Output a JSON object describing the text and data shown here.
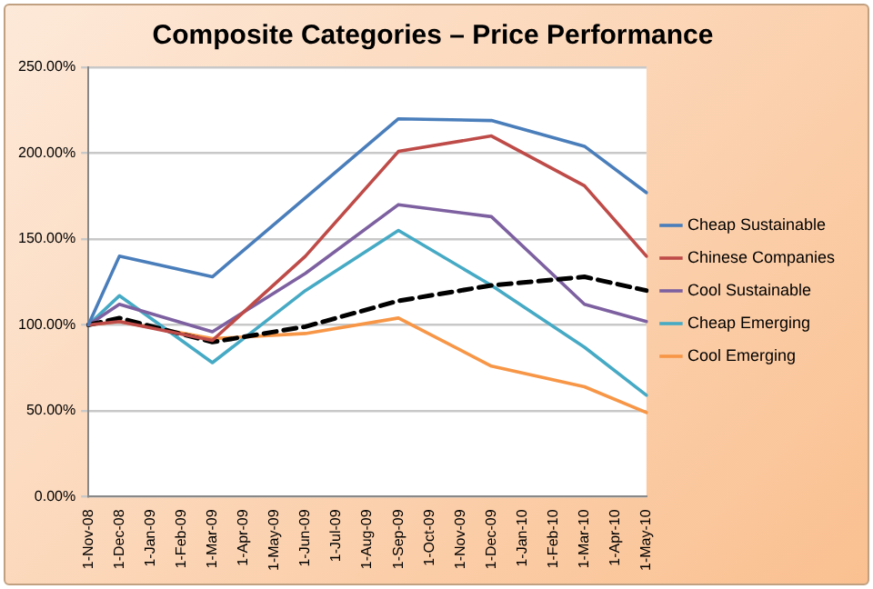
{
  "chart_data": {
    "type": "line",
    "title": "Composite Categories – Price Performance",
    "categories": [
      "1-Nov-08",
      "1-Dec-08",
      "1-Jan-09",
      "1-Feb-09",
      "1-Mar-09",
      "1-Apr-09",
      "1-May-09",
      "1-Jun-09",
      "1-Jul-09",
      "1-Aug-09",
      "1-Sep-09",
      "1-Oct-09",
      "1-Nov-09",
      "1-Dec-09",
      "1-Jan-10",
      "1-Feb-10",
      "1-Mar-10",
      "1-Apr-10",
      "1-May-10"
    ],
    "series": [
      {
        "name": "Cheap Sustainable",
        "color": "#4a7ebb",
        "values": [
          100,
          140,
          null,
          null,
          128,
          null,
          null,
          174,
          null,
          null,
          220,
          null,
          null,
          219,
          null,
          null,
          204,
          null,
          177
        ]
      },
      {
        "name": "Chinese Companies",
        "color": "#be4b48",
        "values": [
          100,
          102,
          null,
          null,
          91,
          null,
          null,
          140,
          null,
          null,
          201,
          null,
          null,
          210,
          null,
          null,
          181,
          null,
          140
        ]
      },
      {
        "color": "#000000",
        "line_style": "dashed",
        "values": [
          100,
          104,
          null,
          null,
          90,
          null,
          null,
          99,
          null,
          null,
          114,
          null,
          null,
          123,
          null,
          null,
          128,
          null,
          120
        ]
      },
      {
        "name": "Cool Sustainable",
        "color": "#7d60a0",
        "values": [
          100,
          112,
          null,
          null,
          96,
          null,
          null,
          130,
          null,
          null,
          170,
          null,
          null,
          163,
          null,
          null,
          112,
          null,
          102
        ]
      },
      {
        "name": "Cheap Emerging",
        "color": "#46aac5",
        "values": [
          100,
          117,
          null,
          null,
          78,
          null,
          null,
          120,
          null,
          null,
          155,
          null,
          null,
          123,
          null,
          null,
          87,
          null,
          59
        ]
      },
      {
        "name": "Cool Emerging",
        "color": "#f79646",
        "values": [
          100,
          102,
          null,
          null,
          92,
          null,
          null,
          95,
          null,
          null,
          104,
          null,
          null,
          76,
          null,
          null,
          64,
          null,
          49
        ]
      }
    ],
    "ylim": [
      0,
      250
    ],
    "yticks": [
      {
        "value": 0,
        "label": "0.00%"
      },
      {
        "value": 50,
        "label": "50.00%"
      },
      {
        "value": 100,
        "label": "100.00%"
      },
      {
        "value": 150,
        "label": "150.00%"
      },
      {
        "value": 200,
        "label": "200.00%"
      },
      {
        "value": 250,
        "label": "250.00%"
      }
    ],
    "grid": "y",
    "legend": "right",
    "marker": "none",
    "line_style": "solid"
  }
}
